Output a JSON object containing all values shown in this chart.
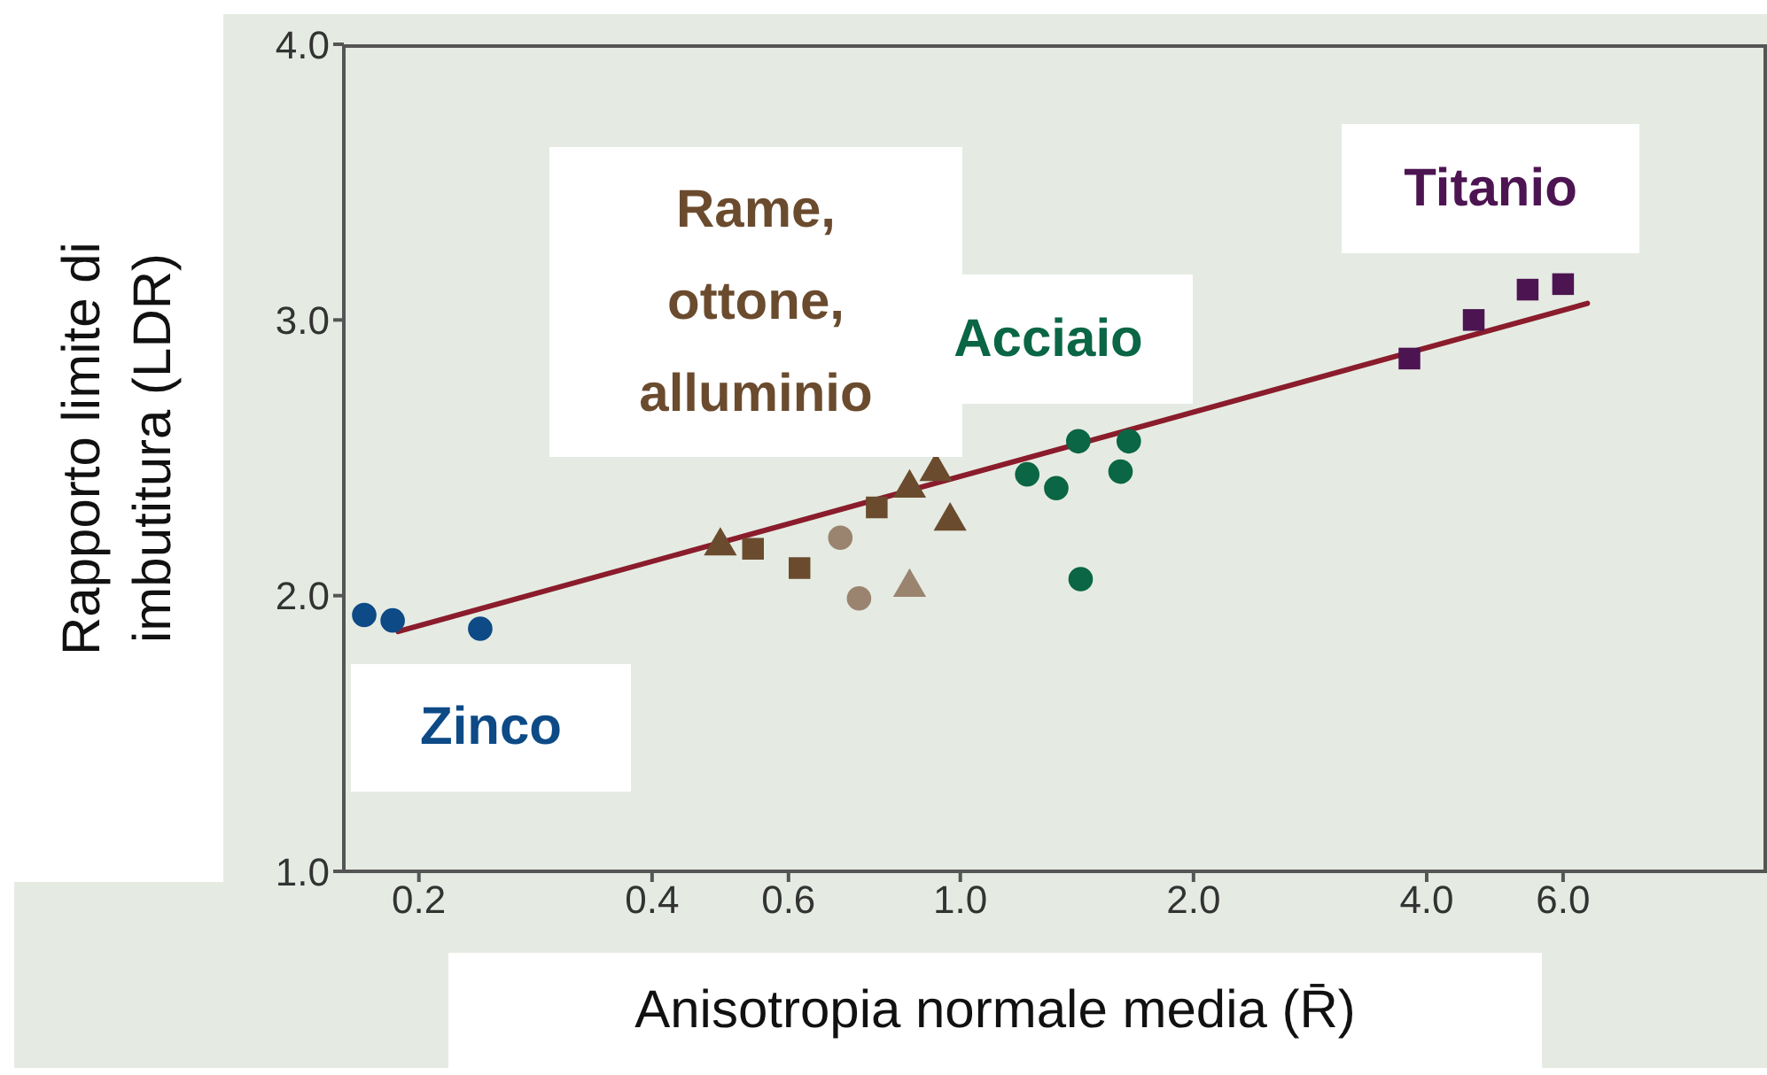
{
  "chart_data": {
    "type": "scatter",
    "xlabel": "Anisotropia normale media (R̄)",
    "ylabel": "Rapporto limite di imbutitura (LDR)",
    "log": "x",
    "xlim": [
      0.16,
      11
    ],
    "xticks": [
      0.2,
      0.4,
      0.6,
      {
        "value": 1,
        "label": "1.0"
      },
      {
        "value": 2,
        "label": "2.0"
      },
      {
        "value": 4,
        "label": "4.0"
      },
      {
        "value": 6,
        "label": "6.0"
      }
    ],
    "ylim": [
      1,
      4
    ],
    "yticks": [
      {
        "value": 1,
        "label": "1.0"
      },
      {
        "value": 2,
        "label": "2.0"
      },
      {
        "value": 3,
        "label": "3.0"
      },
      {
        "value": 4,
        "label": "4.0"
      }
    ],
    "series": [
      {
        "name": "Zinco",
        "color": "#0d4a86",
        "marker": "circle",
        "x": [
          0.17,
          0.185,
          0.24
        ],
        "values": [
          1.93,
          1.91,
          1.88
        ]
      },
      {
        "name": "Rame, ottone, alluminio",
        "color": "#6b4b2e",
        "marker": "triangle",
        "x": [
          0.49,
          0.86,
          0.93,
          0.97
        ],
        "values": [
          2.18,
          2.39,
          2.45,
          2.27
        ]
      },
      {
        "color": "#6b4b2e",
        "marker": "square",
        "x": [
          0.54,
          0.62,
          0.78
        ],
        "values": [
          2.17,
          2.1,
          2.32
        ]
      },
      {
        "color": "#9a8470",
        "marker": "circle",
        "x": [
          0.7,
          0.74
        ],
        "values": [
          2.21,
          1.99
        ]
      },
      {
        "color": "#9a8470",
        "marker": "triangle",
        "x": [
          0.86
        ],
        "values": [
          2.03
        ]
      },
      {
        "name": "Acciaio",
        "color": "#0a6645",
        "marker": "circle",
        "x": [
          1.22,
          1.33,
          1.42,
          1.65,
          1.61,
          1.43
        ],
        "values": [
          2.44,
          2.39,
          2.56,
          2.56,
          2.45,
          2.06
        ]
      },
      {
        "name": "Titanio",
        "color": "#4d1452",
        "marker": "square",
        "x": [
          3.8,
          4.6,
          5.4,
          6.0
        ],
        "values": [
          2.86,
          3.0,
          3.11,
          3.13
        ]
      },
      {
        "type": "line",
        "color": "#8a1c2c",
        "marker": "none",
        "x": [
          0.188,
          6.45
        ],
        "values": [
          1.87,
          3.06
        ]
      }
    ]
  }
}
